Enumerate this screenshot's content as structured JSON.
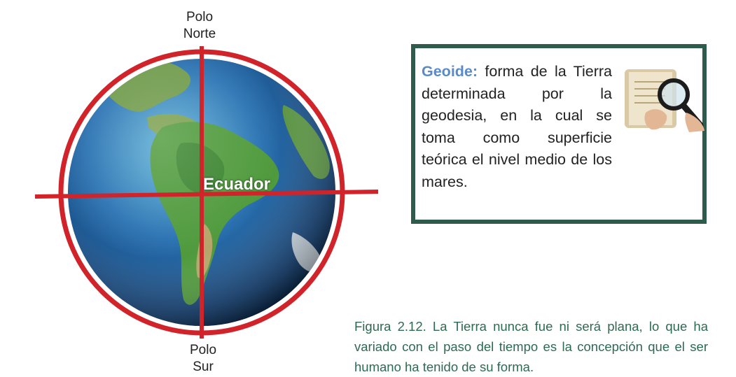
{
  "figure": {
    "labels": {
      "north_pole_line1": "Polo",
      "north_pole_line2": "Norte",
      "south_pole_line1": "Polo",
      "south_pole_line2": "Sur",
      "equator": "Ecuador"
    },
    "colors": {
      "axis_line": "#d1232a",
      "ocean": "#1f5f9e",
      "land": "#4f9a3c"
    }
  },
  "definition": {
    "term": "Geoide:",
    "text": " forma de la Tierra determinada por la geodesia, en la cual se toma como superficie teórica el nivel medio de los mares.",
    "border_color": "#2e5b4c",
    "term_color": "#5b8bc7",
    "image_icon": "magnifying-glass-over-book-icon"
  },
  "caption": {
    "text": "Figura 2.12. La Tierra nunca fue ni será plana, lo que ha variado con el paso del tiempo es la concepción que el ser humano ha tenido de su forma.",
    "color": "#2c6b52"
  }
}
